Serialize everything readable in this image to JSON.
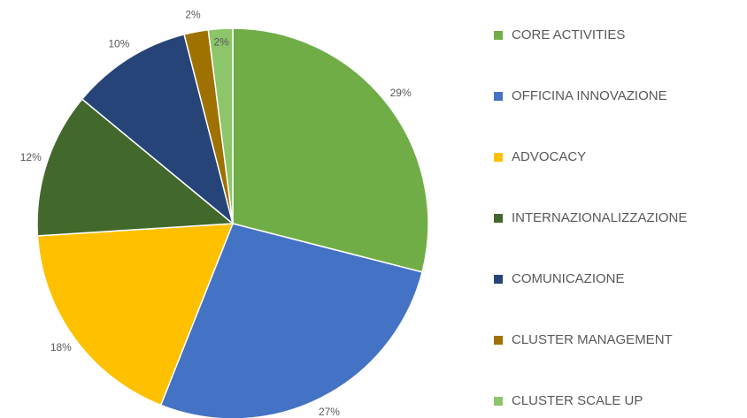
{
  "chart_data": {
    "type": "pie",
    "categories": [
      "CORE ACTIVITIES",
      "OFFICINA INNOVAZIONE",
      "ADVOCACY",
      "INTERNAZIONALIZZAZIONE",
      "COMUNICAZIONE",
      "CLUSTER MANAGEMENT",
      "CLUSTER SCALE UP"
    ],
    "values": [
      29,
      27,
      18,
      12,
      10,
      2,
      2
    ],
    "value_labels": [
      "29%",
      "27%",
      "18%",
      "12%",
      "10%",
      "2%",
      "2%"
    ],
    "colors": [
      "#70ad47",
      "#4472c4",
      "#ffc000",
      "#43682b",
      "#264478",
      "#9e7100",
      "#8cc56a"
    ],
    "legend": "right"
  }
}
